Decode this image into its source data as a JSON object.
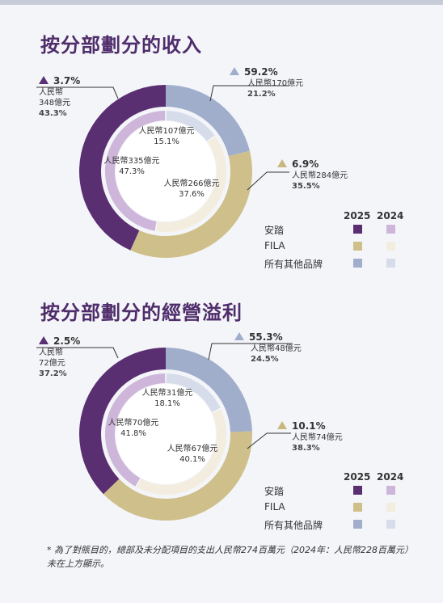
{
  "colors": {
    "anta_2025": "#5a2f72",
    "anta_2024": "#cdb6d9",
    "fila_2025": "#cfbf8a",
    "fila_2024": "#f3ede0",
    "other_2025": "#a0aecb",
    "other_2024": "#d6dcea",
    "triangle_anta": "#5b2f73",
    "triangle_other": "#a0aecb",
    "triangle_fila": "#c9b77e"
  },
  "legend": {
    "year_2025": "2025",
    "year_2024": "2024",
    "items": [
      "安踏",
      "FILA",
      "所有其他品牌"
    ]
  },
  "chart_data": [
    {
      "type": "pie",
      "title": "按分部劃分的收入",
      "categories": [
        "安踏",
        "FILA",
        "所有其他品牌"
      ],
      "series": [
        {
          "name": "2025",
          "values": [
            43.3,
            35.5,
            21.2
          ],
          "amounts": [
            "人民幣348億元",
            "人民幣284億元",
            "人民幣170億元"
          ],
          "growth": [
            "3.7%",
            "6.9%",
            "59.2%"
          ]
        },
        {
          "name": "2024",
          "values": [
            47.3,
            37.6,
            15.1
          ],
          "amounts": [
            "人民幣335億元",
            "人民幣266億元",
            "人民幣107億元"
          ]
        }
      ],
      "labels": {
        "anta_growth": "3.7%",
        "anta_line1": "人民幣",
        "anta_line2": "348億元",
        "anta_pct": "43.3%",
        "other_growth": "59.2%",
        "other_amount": "人民幣170億元",
        "other_pct": "21.2%",
        "fila_growth": "6.9%",
        "fila_amount": "人民幣284億元",
        "fila_pct": "35.5%",
        "inner_other_amount": "人民幣107億元",
        "inner_other_pct": "15.1%",
        "inner_anta_amount": "人民幣335億元",
        "inner_anta_pct": "47.3%",
        "inner_fila_amount": "人民幣266億元",
        "inner_fila_pct": "37.6%"
      }
    },
    {
      "type": "pie",
      "title": "按分部劃分的經營溢利",
      "categories": [
        "安踏",
        "FILA",
        "所有其他品牌"
      ],
      "series": [
        {
          "name": "2025",
          "values": [
            37.2,
            38.3,
            24.5
          ],
          "amounts": [
            "人民幣72億元",
            "人民幣74億元",
            "人民幣48億元"
          ],
          "growth": [
            "2.5%",
            "10.1%",
            "55.3%"
          ]
        },
        {
          "name": "2024",
          "values": [
            41.8,
            40.1,
            18.1
          ],
          "amounts": [
            "人民幣70億元",
            "人民幣67億元",
            "人民幣31億元"
          ]
        }
      ],
      "labels": {
        "anta_growth": "2.5%",
        "anta_line1": "人民幣",
        "anta_line2": "72億元",
        "anta_pct": "37.2%",
        "other_growth": "55.3%",
        "other_amount": "人民幣48億元",
        "other_pct": "24.5%",
        "fila_growth": "10.1%",
        "fila_amount": "人民幣74億元",
        "fila_pct": "38.3%",
        "inner_other_amount": "人民幣31億元",
        "inner_other_pct": "18.1%",
        "inner_anta_amount": "人民幣70億元",
        "inner_anta_pct": "41.8%",
        "inner_fila_amount": "人民幣67億元",
        "inner_fila_pct": "40.1%"
      }
    }
  ],
  "footnote": "* 為了對賬目的，總部及未分配項目的支出人民幣274百萬元（2024年：人民幣228百萬元）未在上方顯示。"
}
